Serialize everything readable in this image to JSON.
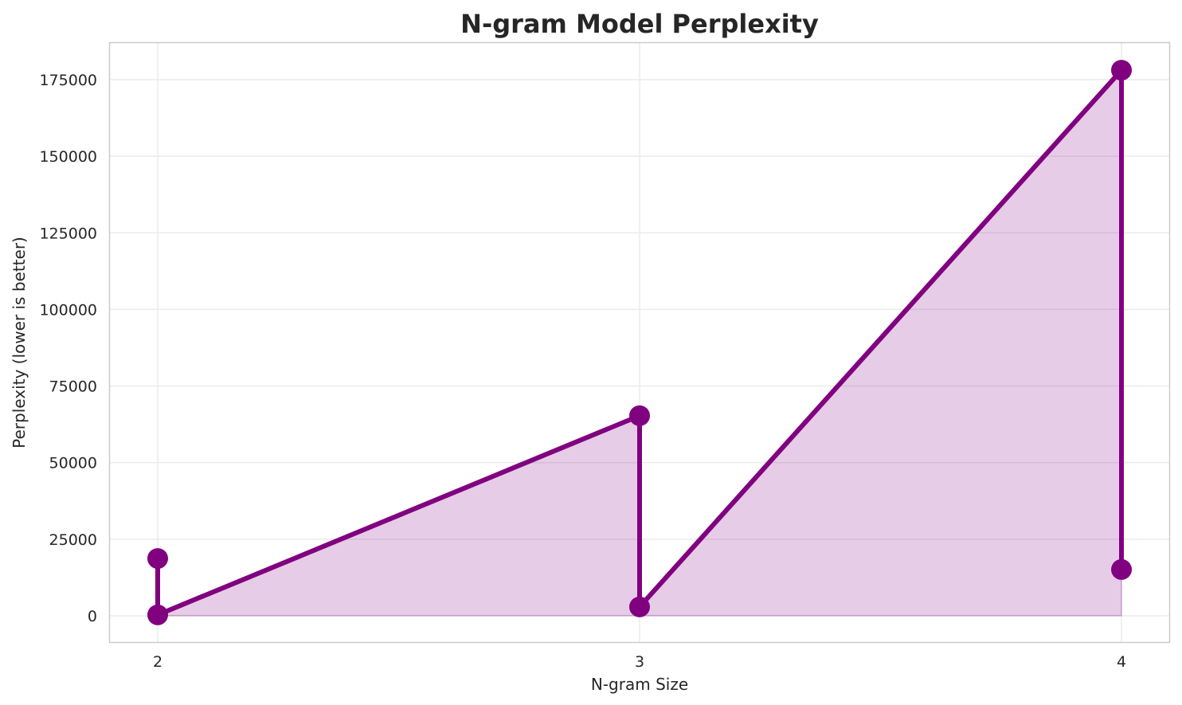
{
  "chart_data": {
    "type": "line",
    "title": "N-gram Model Perplexity",
    "xlabel": "N-gram Size",
    "ylabel": "Perplexity (lower is better)",
    "x_ticks": [
      "2",
      "3",
      "4"
    ],
    "y_ticks": [
      "0",
      "25000",
      "50000",
      "75000",
      "100000",
      "125000",
      "150000",
      "175000"
    ],
    "ylim": [
      -8500,
      187000
    ],
    "xlim": [
      1.9,
      4.1
    ],
    "grid": true,
    "legend": null,
    "fill_under": true,
    "series": [
      {
        "name": "Perplexity",
        "color": "#800080",
        "fill_color": "#800080",
        "fill_alpha": 0.2,
        "points": [
          {
            "x": 2,
            "y": 18700
          },
          {
            "x": 2,
            "y": 300
          },
          {
            "x": 3,
            "y": 65300
          },
          {
            "x": 3,
            "y": 2900
          },
          {
            "x": 4,
            "y": 178100
          },
          {
            "x": 4,
            "y": 15100
          }
        ]
      }
    ]
  },
  "title": "N-gram Model Perplexity",
  "xlabel": "N-gram Size",
  "ylabel": "Perplexity (lower is better)"
}
